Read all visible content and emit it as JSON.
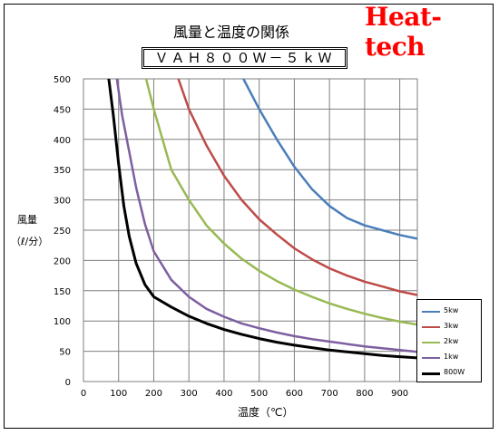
{
  "header": {
    "title": "風量と温度の関係",
    "model": "ＶＡＨ８００Ｗ－５ｋＷ",
    "brand": "Heat-tech"
  },
  "colors": {
    "brand": "#ff0000",
    "grid": "#7f7f7f",
    "s5kw": "#4a7ebb",
    "s3kw": "#be4b48",
    "s2kw": "#98b954",
    "s1kw": "#7d5fa0",
    "s800w": "#000000"
  },
  "chart_data": {
    "type": "line",
    "xlabel": "温度（℃）",
    "ylabel_line1": "風量",
    "ylabel_line2": "（ℓ/分）",
    "xlim": [
      0,
      950
    ],
    "ylim": [
      0,
      500
    ],
    "xticks": [
      "0",
      "100",
      "200",
      "300",
      "400",
      "500",
      "600",
      "700",
      "800",
      "900"
    ],
    "yticks": [
      "0",
      "50",
      "100",
      "150",
      "200",
      "250",
      "300",
      "350",
      "400",
      "450",
      "500"
    ],
    "grid": true,
    "legend_position": "right",
    "series": [
      {
        "name": "5kw",
        "color": "#4a7ebb",
        "points": [
          [
            455,
            500
          ],
          [
            500,
            450
          ],
          [
            550,
            400
          ],
          [
            600,
            355
          ],
          [
            650,
            318
          ],
          [
            700,
            290
          ],
          [
            750,
            270
          ],
          [
            800,
            258
          ],
          [
            850,
            250
          ],
          [
            900,
            242
          ],
          [
            950,
            236
          ]
        ]
      },
      {
        "name": "3kw",
        "color": "#be4b48",
        "points": [
          [
            270,
            500
          ],
          [
            300,
            450
          ],
          [
            350,
            390
          ],
          [
            400,
            340
          ],
          [
            450,
            300
          ],
          [
            500,
            268
          ],
          [
            550,
            243
          ],
          [
            600,
            220
          ],
          [
            650,
            202
          ],
          [
            700,
            187
          ],
          [
            750,
            175
          ],
          [
            800,
            165
          ],
          [
            850,
            157
          ],
          [
            900,
            149
          ],
          [
            950,
            143
          ]
        ]
      },
      {
        "name": "2kw",
        "color": "#98b954",
        "points": [
          [
            178,
            500
          ],
          [
            200,
            450
          ],
          [
            250,
            350
          ],
          [
            300,
            300
          ],
          [
            350,
            258
          ],
          [
            400,
            228
          ],
          [
            450,
            203
          ],
          [
            500,
            183
          ],
          [
            550,
            166
          ],
          [
            600,
            152
          ],
          [
            650,
            140
          ],
          [
            700,
            129
          ],
          [
            750,
            120
          ],
          [
            800,
            112
          ],
          [
            850,
            105
          ],
          [
            900,
            99
          ],
          [
            950,
            94
          ]
        ]
      },
      {
        "name": "1kw",
        "color": "#7d5fa0",
        "points": [
          [
            95,
            500
          ],
          [
            110,
            440
          ],
          [
            130,
            380
          ],
          [
            150,
            320
          ],
          [
            175,
            260
          ],
          [
            200,
            215
          ],
          [
            250,
            168
          ],
          [
            300,
            140
          ],
          [
            350,
            120
          ],
          [
            400,
            107
          ],
          [
            450,
            96
          ],
          [
            500,
            88
          ],
          [
            550,
            81
          ],
          [
            600,
            75
          ],
          [
            650,
            70
          ],
          [
            700,
            66
          ],
          [
            750,
            62
          ],
          [
            800,
            58
          ],
          [
            850,
            55
          ],
          [
            900,
            52
          ],
          [
            950,
            49
          ]
        ]
      },
      {
        "name": "800W",
        "color": "#000000",
        "points": [
          [
            72,
            500
          ],
          [
            85,
            440
          ],
          [
            100,
            360
          ],
          [
            115,
            290
          ],
          [
            130,
            240
          ],
          [
            150,
            195
          ],
          [
            175,
            160
          ],
          [
            200,
            140
          ],
          [
            250,
            123
          ],
          [
            300,
            108
          ],
          [
            350,
            96
          ],
          [
            400,
            86
          ],
          [
            450,
            78
          ],
          [
            500,
            71
          ],
          [
            550,
            65
          ],
          [
            600,
            60
          ],
          [
            650,
            56
          ],
          [
            700,
            52
          ],
          [
            750,
            49
          ],
          [
            800,
            46
          ],
          [
            850,
            43
          ],
          [
            900,
            41
          ],
          [
            950,
            39
          ]
        ]
      }
    ]
  }
}
